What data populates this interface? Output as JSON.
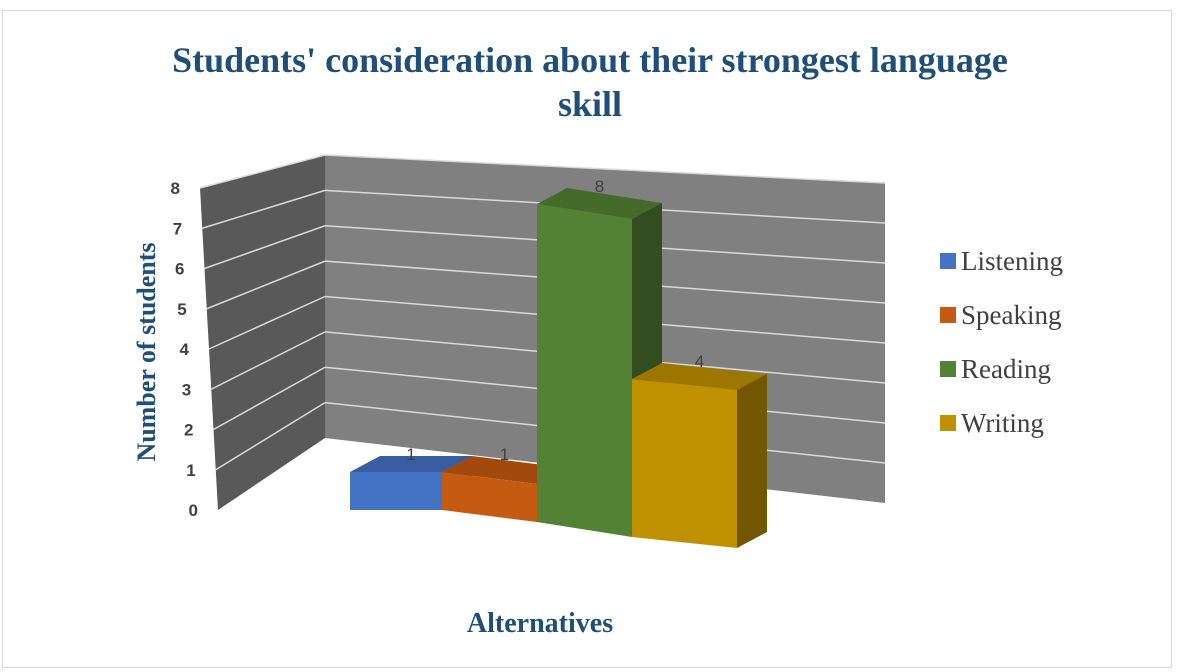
{
  "chart_data": {
    "type": "bar",
    "title": "Students' consideration about their strongest language skill",
    "xlabel": "Alternatives",
    "ylabel": "Number of students",
    "categories": [
      "Listening",
      "Speaking",
      "Reading",
      "Writing"
    ],
    "values": [
      1,
      1,
      8,
      4
    ],
    "colors": [
      "#4472c4",
      "#c55a11",
      "#548235",
      "#bf9000"
    ],
    "yticks": [
      "0",
      "1",
      "2",
      "3",
      "4",
      "5",
      "6",
      "7",
      "8"
    ],
    "ylim": [
      0,
      8
    ],
    "grid": true,
    "legend_position": "right",
    "style": "3d-column"
  }
}
